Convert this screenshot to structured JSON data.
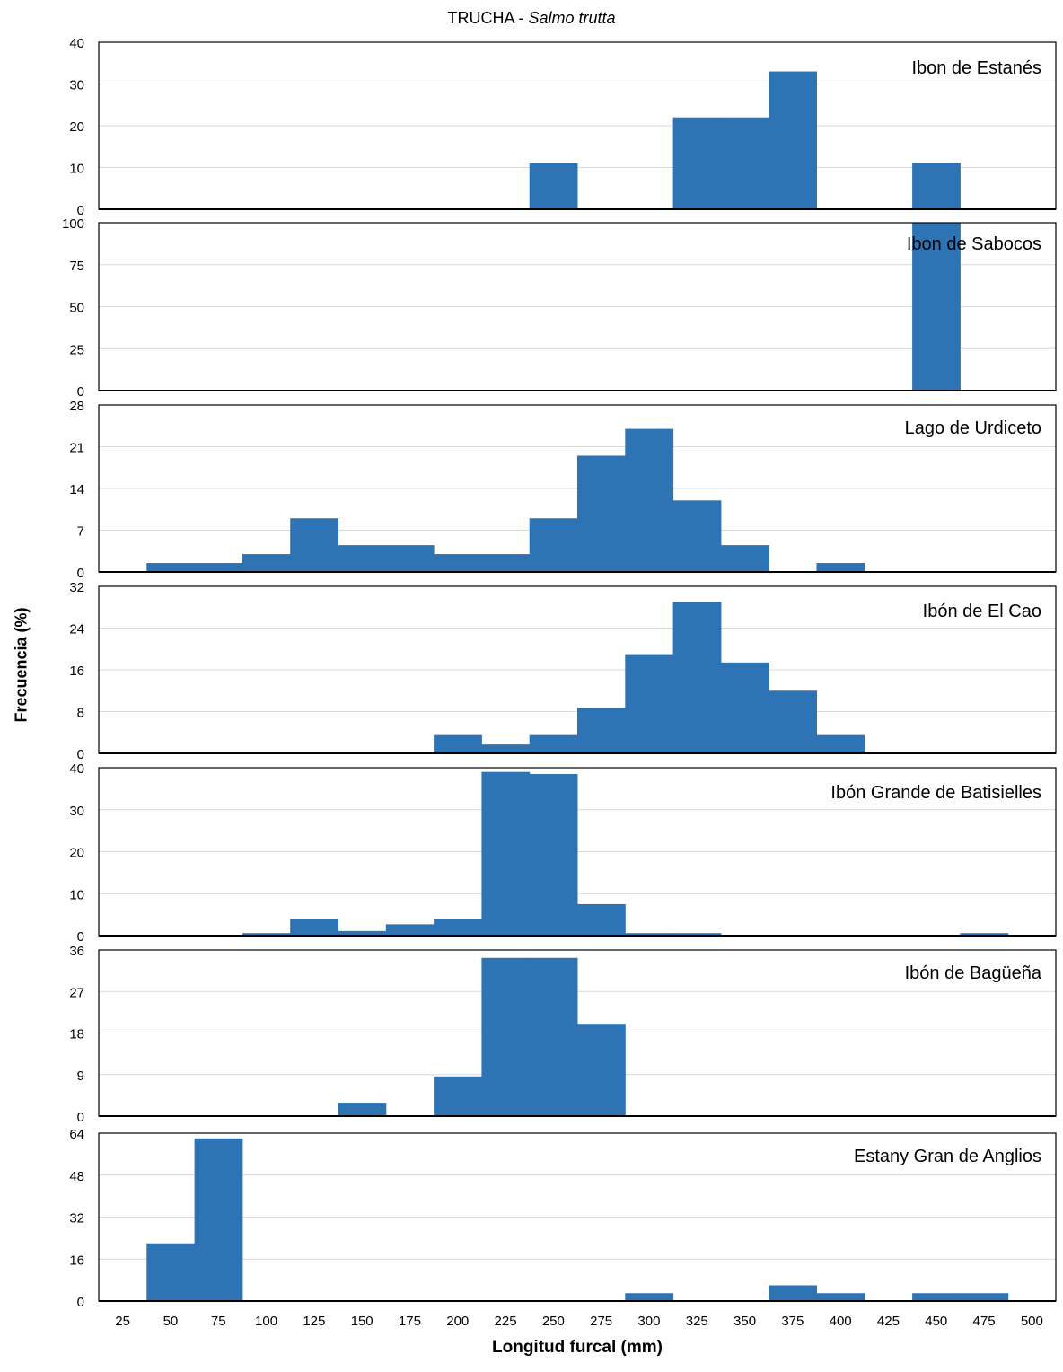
{
  "chart_data": {
    "type": "bar",
    "title_prefix": "TRUCHA - ",
    "title_italic": "Salmo trutta",
    "xlabel": "Longitud furcal (mm)",
    "ylabel": "Frecuencia (%)",
    "categories": [
      "25",
      "50",
      "75",
      "100",
      "125",
      "150",
      "175",
      "200",
      "225",
      "250",
      "275",
      "300",
      "325",
      "350",
      "375",
      "400",
      "425",
      "450",
      "475",
      "500"
    ],
    "colors": {
      "bar": "#2e74b5",
      "grid": "#d9d9d9",
      "axis": "#000000"
    },
    "panels": [
      {
        "name": "Ibon de Estanés",
        "ylim": [
          0,
          40
        ],
        "yticks": [
          0,
          10,
          20,
          30,
          40
        ],
        "values": [
          0,
          0,
          0,
          0,
          0,
          0,
          0,
          0,
          0,
          11,
          0,
          0,
          22,
          22,
          33,
          0,
          0,
          11,
          0,
          0
        ]
      },
      {
        "name": "Ibon de Sabocos",
        "ylim": [
          0,
          100
        ],
        "yticks": [
          0,
          25,
          50,
          75,
          100
        ],
        "values": [
          0,
          0,
          0,
          0,
          0,
          0,
          0,
          0,
          0,
          0,
          0,
          0,
          0,
          0,
          0,
          0,
          0,
          100,
          0,
          0
        ]
      },
      {
        "name": "Lago de Urdiceto",
        "ylim": [
          0,
          28
        ],
        "yticks": [
          0,
          7,
          14,
          21,
          28
        ],
        "values": [
          0,
          1.5,
          1.5,
          3,
          9,
          4.5,
          4.5,
          3,
          3,
          9,
          19.5,
          24,
          12,
          4.5,
          0,
          1.5,
          0,
          0,
          0,
          0
        ]
      },
      {
        "name": "Ibón de El Cao",
        "ylim": [
          0,
          32
        ],
        "yticks": [
          0,
          8,
          16,
          24,
          32
        ],
        "values": [
          0,
          0,
          0,
          0,
          0,
          0,
          0,
          3.5,
          1.7,
          3.5,
          8.7,
          19,
          29,
          17.4,
          12,
          3.5,
          0,
          0,
          0,
          0
        ]
      },
      {
        "name": "Ibón Grande de Batisielles",
        "ylim": [
          0,
          40
        ],
        "yticks": [
          0,
          10,
          20,
          30,
          40
        ],
        "values": [
          0,
          0,
          0,
          0.6,
          3.9,
          1.1,
          2.7,
          3.9,
          39,
          38.5,
          7.5,
          0.6,
          0.6,
          0,
          0,
          0,
          0,
          0,
          0.6,
          0
        ]
      },
      {
        "name": "Ibón de Bagüeña",
        "ylim": [
          0,
          36
        ],
        "yticks": [
          0,
          9,
          18,
          27,
          36
        ],
        "values": [
          0,
          0,
          0,
          0,
          0,
          2.9,
          0,
          8.6,
          34.3,
          34.3,
          20,
          0,
          0,
          0,
          0,
          0,
          0,
          0,
          0,
          0
        ]
      },
      {
        "name": "Estany Gran de Anglios",
        "ylim": [
          0,
          64
        ],
        "yticks": [
          0,
          16,
          32,
          48,
          64
        ],
        "values": [
          0,
          22,
          62,
          0,
          0,
          0,
          0,
          0,
          0,
          0,
          0,
          3,
          0,
          0,
          6,
          3,
          0,
          3,
          3,
          0
        ]
      }
    ]
  }
}
